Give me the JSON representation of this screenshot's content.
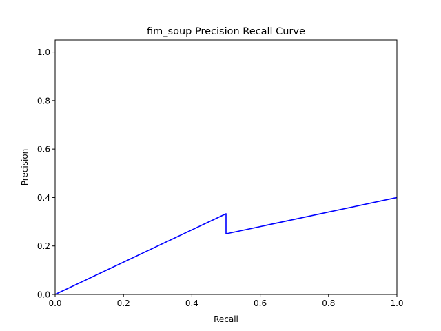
{
  "chart_data": {
    "type": "line",
    "title": "fim_soup Precision Recall Curve",
    "xlabel": "Recall",
    "ylabel": "Precision",
    "xlim": [
      0.0,
      1.0
    ],
    "ylim": [
      0.0,
      1.05
    ],
    "x_ticks": [
      "0.0",
      "0.2",
      "0.4",
      "0.6",
      "0.8",
      "1.0"
    ],
    "y_ticks": [
      "0.0",
      "0.2",
      "0.4",
      "0.6",
      "0.8",
      "1.0"
    ],
    "grid": false,
    "series": [
      {
        "color": "#0000ff",
        "points": [
          {
            "x": 0.0,
            "y": 0.0
          },
          {
            "x": 0.5,
            "y": 0.333
          },
          {
            "x": 0.5,
            "y": 0.25
          },
          {
            "x": 1.0,
            "y": 0.4
          }
        ]
      }
    ]
  }
}
